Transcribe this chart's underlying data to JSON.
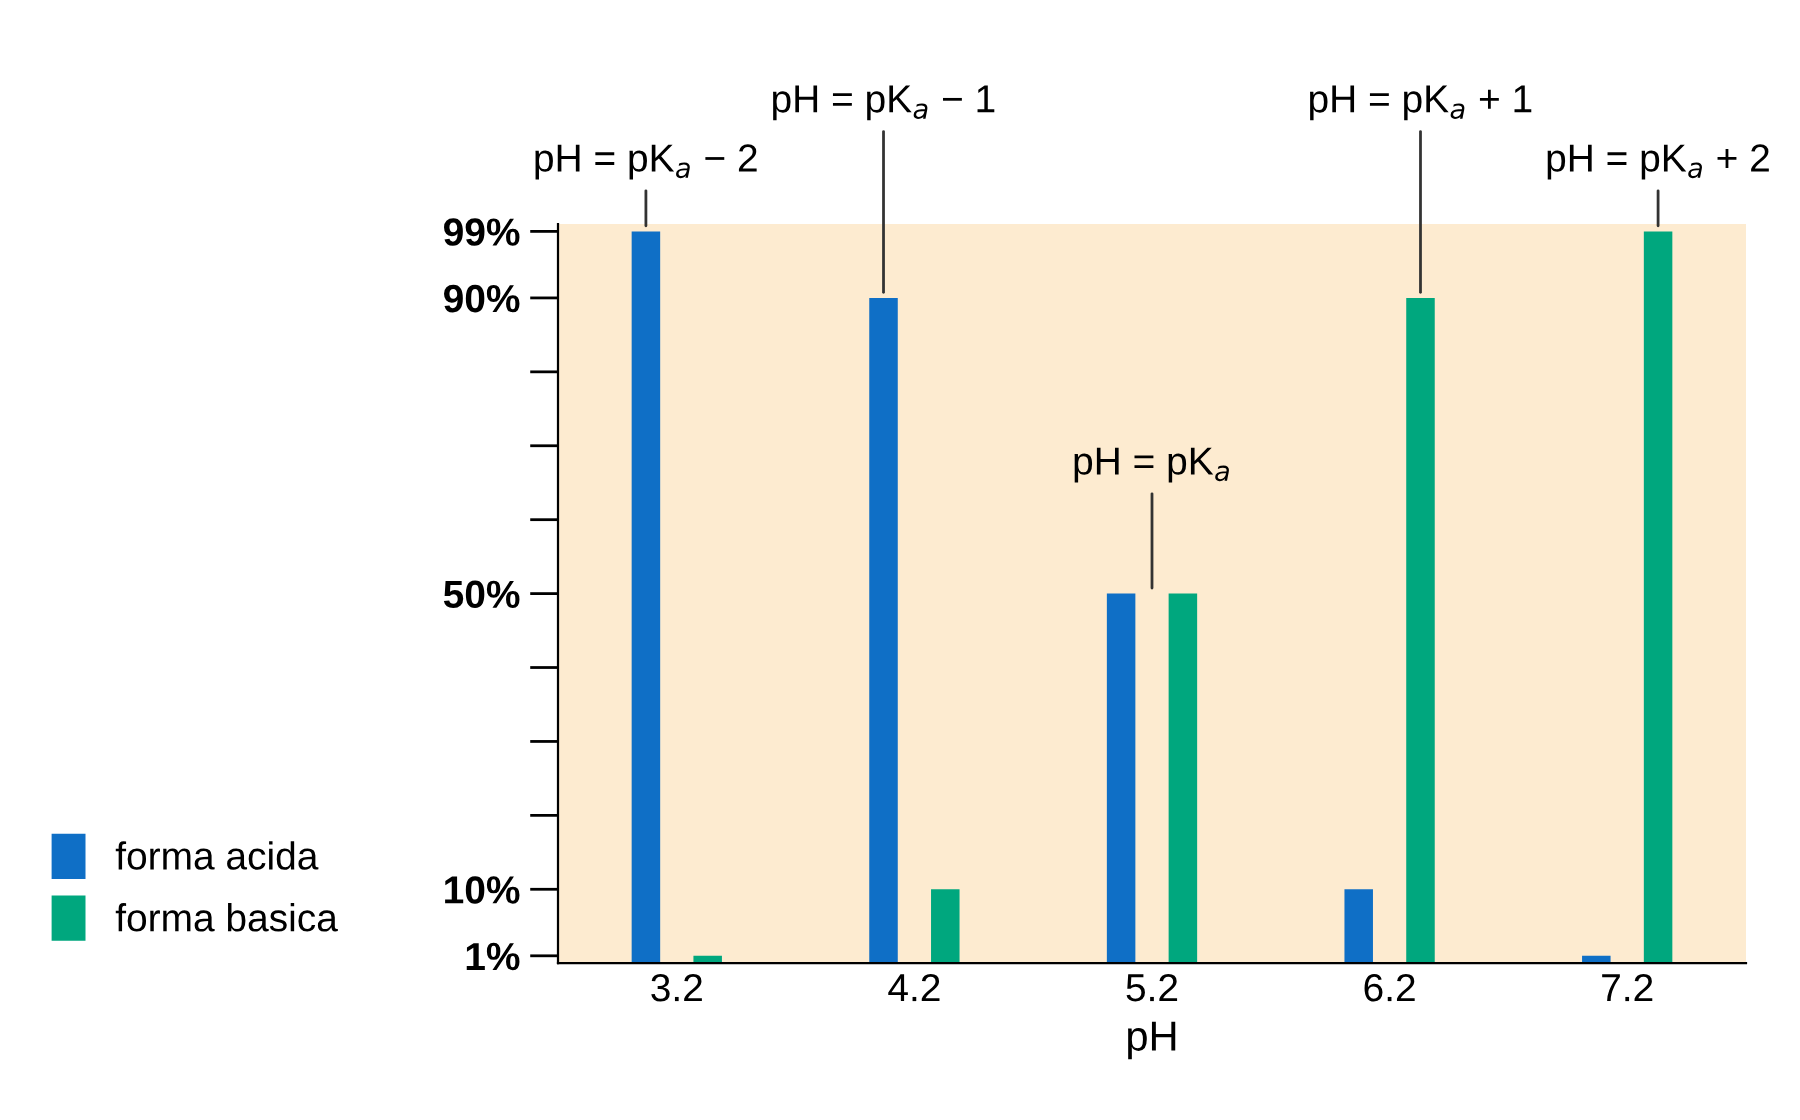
{
  "chart_data": {
    "type": "bar",
    "xlabel": "pH",
    "categories": [
      "3.2",
      "4.2",
      "5.2",
      "6.2",
      "7.2"
    ],
    "series": [
      {
        "name": "forma acida",
        "color": "#0f6fc6",
        "values": [
          99,
          90,
          50,
          10,
          1
        ]
      },
      {
        "name": "forma basica",
        "color": "#00a77e",
        "values": [
          1,
          10,
          50,
          90,
          99
        ]
      }
    ],
    "ylim": [
      0,
      100
    ],
    "yticks": [
      {
        "value": 1,
        "label": "1%"
      },
      {
        "value": 10,
        "label": "10%"
      },
      {
        "value": 20,
        "label": null
      },
      {
        "value": 30,
        "label": null
      },
      {
        "value": 40,
        "label": null
      },
      {
        "value": 50,
        "label": "50%"
      },
      {
        "value": 60,
        "label": null
      },
      {
        "value": 70,
        "label": null
      },
      {
        "value": 80,
        "label": null
      },
      {
        "value": 90,
        "label": "90%"
      },
      {
        "value": 99,
        "label": "99%"
      }
    ],
    "annotations": [
      {
        "text": "pH = pK$_{a}$ − 2",
        "y": 99
      },
      {
        "text": "pH = pK$_{a}$ − 1",
        "y": 90
      },
      "pH = pK$_{a}$",
      {
        "text": "pH = pK$_{a}$ + 1",
        "y": 90
      },
      {
        "text": "pH = pK$_{a}$ + 2",
        "y": 99
      }
    ],
    "grid": false,
    "legend": "bottom left"
  }
}
